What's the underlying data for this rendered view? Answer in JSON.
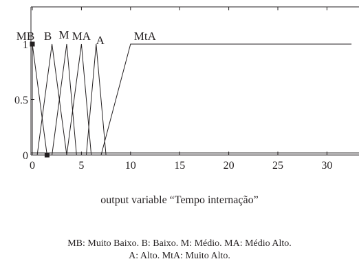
{
  "chart_data": {
    "type": "line",
    "title": "",
    "xlabel": "output variable “Tempo internação”",
    "ylabel": "",
    "xlim": [
      0,
      32.5
    ],
    "ylim": [
      0,
      1
    ],
    "x_ticks": [
      0,
      5,
      10,
      15,
      20,
      25,
      30
    ],
    "y_ticks": [
      0,
      0.5,
      1
    ],
    "y_tick_labels": [
      "0",
      "0.5",
      "1"
    ],
    "grid": false,
    "legend": "none",
    "line_color": "#231f20",
    "series": [
      {
        "name": "MB",
        "x": [
          0,
          0,
          1.5
        ],
        "y": [
          0,
          1,
          0
        ]
      },
      {
        "name": "B",
        "x": [
          0.5,
          2,
          3.5
        ],
        "y": [
          0,
          1,
          0
        ]
      },
      {
        "name": "M",
        "x": [
          2,
          3.5,
          4.5
        ],
        "y": [
          0,
          1,
          0
        ]
      },
      {
        "name": "MA",
        "x": [
          3.5,
          5,
          6
        ],
        "y": [
          0,
          1,
          0
        ]
      },
      {
        "name": "A",
        "x": [
          5.5,
          6.5,
          7.5
        ],
        "y": [
          0,
          1,
          0
        ]
      },
      {
        "name": "MtA",
        "x": [
          7,
          10,
          32.5
        ],
        "y": [
          0,
          1,
          1
        ]
      }
    ],
    "markers": [
      {
        "x": 0,
        "y": 1
      },
      {
        "x": 1.5,
        "y": 0
      }
    ]
  },
  "caption": {
    "line1": "MB: Muito Baixo. B: Baixo. M: Médio. MA: Médio Alto.",
    "line2": "A: Alto. MtA: Muito Alto."
  }
}
